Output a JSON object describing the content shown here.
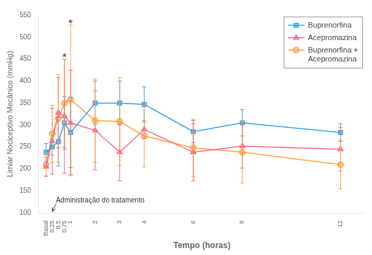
{
  "chart_data": {
    "type": "line",
    "x": [
      0,
      0.25,
      0.5,
      0.75,
      1,
      2,
      3,
      4,
      6,
      8,
      12
    ],
    "series": [
      {
        "name": "Buprenorfina",
        "marker": "square",
        "values": [
          238,
          250,
          262,
          305,
          283,
          350,
          350,
          347,
          285,
          305,
          283
        ],
        "errors": [
          20,
          18,
          55,
          60,
          80,
          50,
          50,
          40,
          25,
          30,
          20
        ]
      },
      {
        "name": "Acepromazina",
        "marker": "triangle",
        "values": [
          205,
          263,
          328,
          320,
          305,
          288,
          238,
          290,
          238,
          252,
          245
        ],
        "errors": [
          22,
          75,
          80,
          130,
          120,
          90,
          65,
          20,
          65,
          50,
          50
        ]
      },
      {
        "name": "Buprenorfina +\nAcepromazina",
        "marker": "circle",
        "values": [
          210,
          280,
          315,
          350,
          358,
          310,
          308,
          275,
          248,
          238,
          210
        ],
        "errors": [
          25,
          65,
          100,
          100,
          170,
          95,
          100,
          70,
          65,
          70,
          55
        ]
      }
    ],
    "xlim": [
      -0.3,
      13
    ],
    "xticks": [
      {
        "value": 0,
        "label": "Basal"
      },
      0.25,
      0.5,
      0.75,
      1,
      2,
      3,
      4,
      6,
      8,
      12
    ],
    "ylim": [
      100,
      550
    ],
    "yticks": [
      100,
      150,
      200,
      250,
      300,
      350,
      400,
      450,
      500,
      550
    ],
    "xlabel": "Tempo (horas)",
    "ylabel": "Limiar Nociceptivo Mecânico (mmHg)",
    "annotations": [
      {
        "text": "*",
        "x": 0.75,
        "y": 458
      },
      {
        "text": "*",
        "x": 1,
        "y": 536
      },
      {
        "text": "Administração do tratamento",
        "x": 0.4,
        "y": 120,
        "arrow_x": 0.25,
        "arrow_y": 103
      }
    ],
    "legend": "upper right",
    "grid": false
  }
}
